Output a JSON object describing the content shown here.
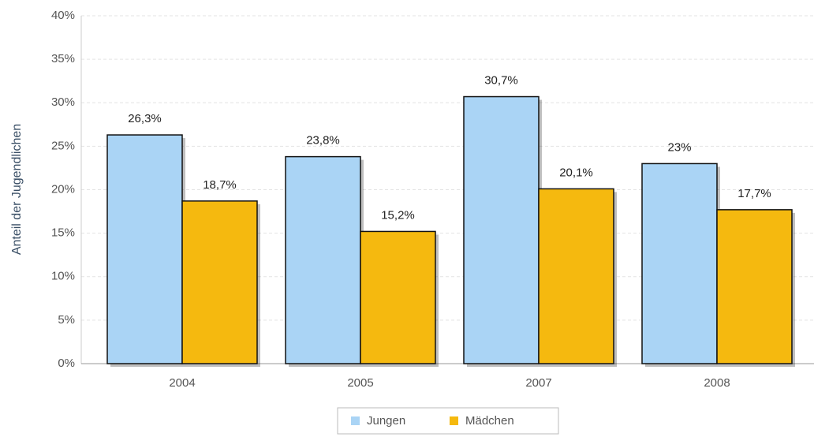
{
  "chart_data": {
    "type": "bar",
    "y_label": "Anteil der Jugendlichen",
    "categories": [
      "2004",
      "2005",
      "2007",
      "2008"
    ],
    "series": [
      {
        "name": "Jungen",
        "color": "#aad4f5",
        "values": [
          26.3,
          23.8,
          30.7,
          23
        ],
        "value_labels": [
          "26,3%",
          "23,8%",
          "30,7%",
          "23%"
        ]
      },
      {
        "name": "Mädchen",
        "color": "#f5b90f",
        "values": [
          18.7,
          15.2,
          20.1,
          17.7
        ],
        "value_labels": [
          "18,7%",
          "15,2%",
          "20,1%",
          "17,7%"
        ]
      }
    ],
    "ylim": [
      0,
      40
    ],
    "yticks": [
      {
        "value": 0,
        "label": "0%"
      },
      {
        "value": 5,
        "label": "5%"
      },
      {
        "value": 10,
        "label": "10%"
      },
      {
        "value": 15,
        "label": "15%"
      },
      {
        "value": 20,
        "label": "20%"
      },
      {
        "value": 25,
        "label": "25%"
      },
      {
        "value": 30,
        "label": "30%"
      },
      {
        "value": 35,
        "label": "35%"
      },
      {
        "value": 40,
        "label": "40%"
      }
    ],
    "grid": true
  }
}
